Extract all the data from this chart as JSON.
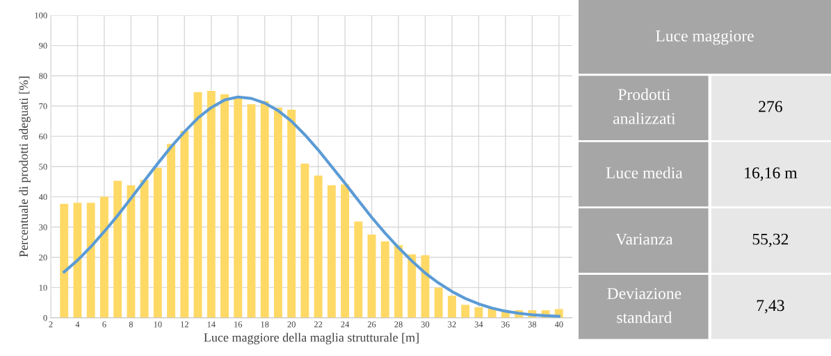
{
  "chart_data": [
    {
      "type": "bar",
      "xlabel": "Luce maggiore della maglia strutturale [m]",
      "ylabel": "Percentuale di prodotti adeguati [%]",
      "x": [
        3,
        4,
        5,
        6,
        7,
        8,
        9,
        10,
        11,
        12,
        13,
        14,
        15,
        16,
        17,
        18,
        19,
        20,
        21,
        22,
        23,
        24,
        25,
        26,
        27,
        28,
        29,
        30,
        31,
        32,
        33,
        34,
        35,
        36,
        37,
        38,
        39,
        40
      ],
      "series": [
        {
          "type": "bar",
          "color": "#ffd966",
          "values": [
            37.7,
            38,
            38,
            40,
            45.3,
            43.8,
            45.6,
            49.6,
            57.5,
            61.8,
            74.6,
            75,
            73.9,
            72.6,
            70.6,
            71.6,
            69.5,
            68.8,
            51,
            47,
            43.8,
            44.1,
            31.8,
            27.5,
            25.3,
            24,
            21,
            20.7,
            10,
            7.3,
            4.3,
            3.5,
            3.2,
            2.1,
            2.5,
            2.5,
            2.5,
            2.9
          ]
        },
        {
          "type": "line",
          "color": "#5b9bd5",
          "values": [
            15.2,
            19,
            23.5,
            28.5,
            33.8,
            39.5,
            45.3,
            51,
            56.5,
            61.5,
            66,
            69.5,
            72,
            73,
            72.5,
            71,
            68.5,
            65,
            60.5,
            55.5,
            50,
            44.5,
            38.8,
            33.2,
            28,
            23.2,
            18.8,
            14.8,
            11.5,
            8.7,
            6.4,
            4.6,
            3.2,
            2.2,
            1.5,
            1,
            0.7,
            0.5
          ]
        }
      ],
      "xlim": [
        2,
        41
      ],
      "xticks": [
        2,
        4,
        6,
        8,
        10,
        12,
        14,
        16,
        18,
        20,
        22,
        24,
        26,
        28,
        30,
        32,
        34,
        36,
        38,
        40
      ],
      "ylim": [
        0,
        100
      ],
      "yticks": [
        0,
        10,
        20,
        30,
        40,
        50,
        60,
        70,
        80,
        90,
        100
      ],
      "grid": true,
      "marker": "none",
      "line_style": "solid"
    },
    {
      "type": "other",
      "title": "Luce maggiore",
      "categories": [
        "Prodotti analizzati",
        "Luce media",
        "Varianza",
        "Deviazione standard"
      ],
      "value_labels": [
        "276",
        "16,16 m",
        "55,32",
        "7,43"
      ]
    }
  ]
}
